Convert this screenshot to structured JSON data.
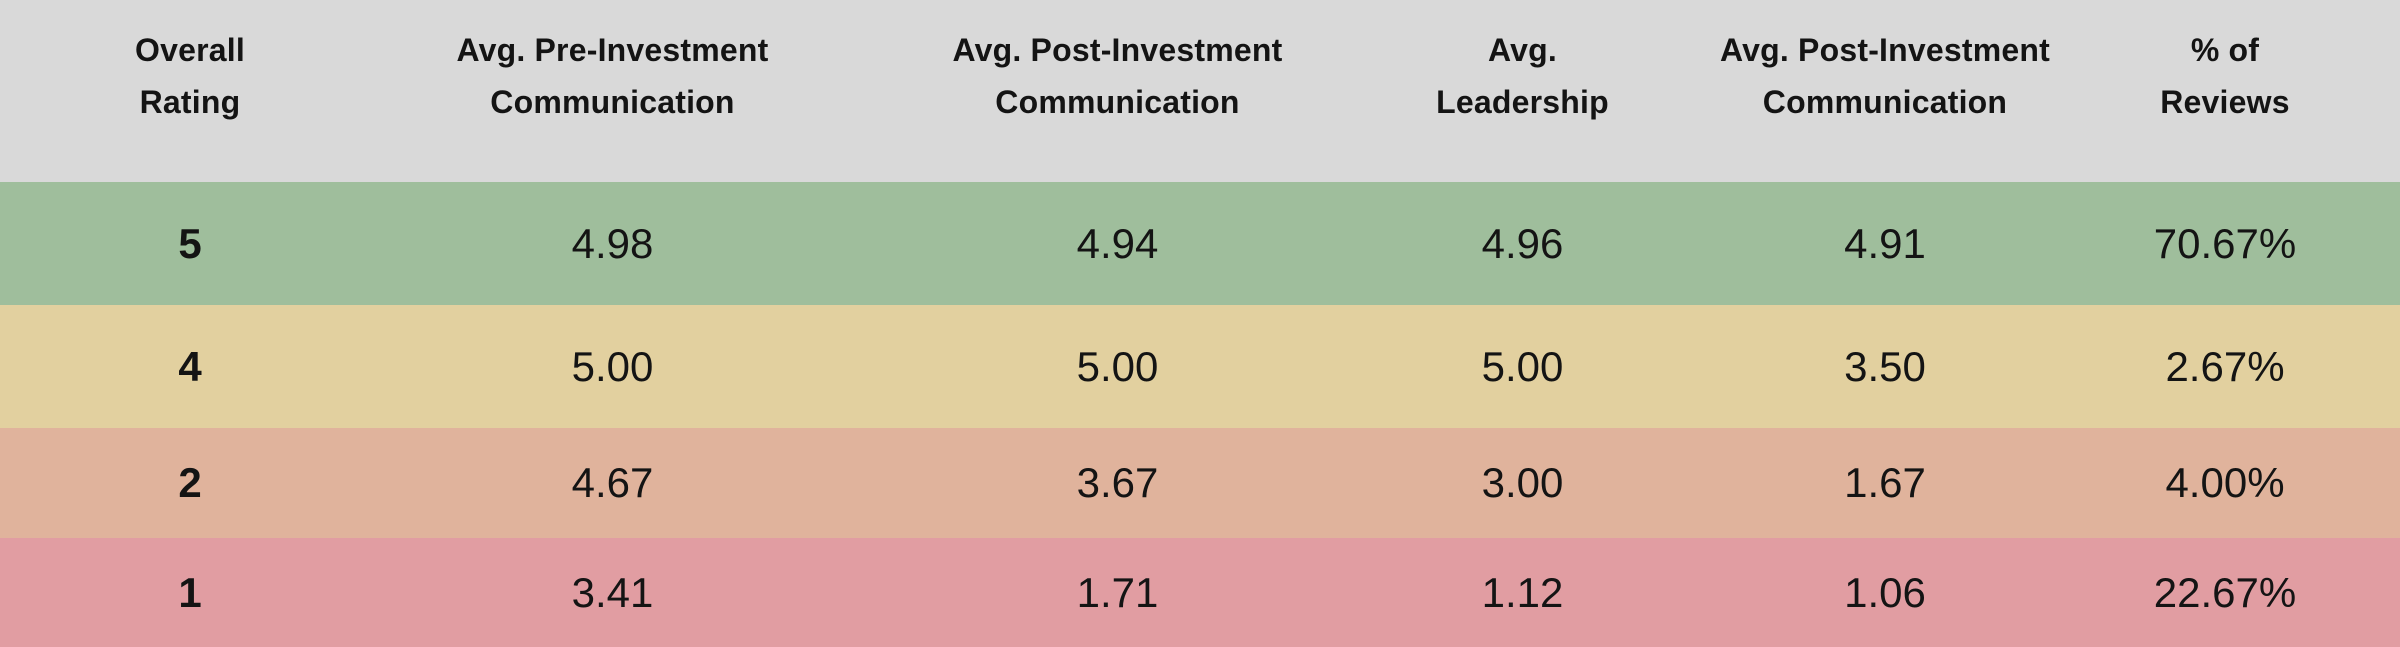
{
  "header": {
    "style": "background-color:#D9D9D9",
    "columns": [
      "Overall\nRating",
      "Avg. Pre-Investment\nCommunication",
      "Avg. Post-Investment\nCommunication",
      "Avg.\nLeadership",
      "Avg. Post-Investment\nCommunication",
      "% of\nReviews"
    ]
  },
  "rows": [
    {
      "style": "background-color:#9FBE9C",
      "cells": [
        "5",
        "4.98",
        "4.94",
        "4.96",
        "4.91",
        "70.67%"
      ]
    },
    {
      "style": "background-color:#E2D09F",
      "cells": [
        "4",
        "5.00",
        "5.00",
        "5.00",
        "3.50",
        "2.67%"
      ]
    },
    {
      "style": "background-color:#E0B39C",
      "cells": [
        "2",
        "4.67",
        "3.67",
        "3.00",
        "1.67",
        "4.00%"
      ]
    },
    {
      "style": "background-color:#E19DA2",
      "cells": [
        "1",
        "3.41",
        "1.71",
        "1.12",
        "1.06",
        "22.67%"
      ]
    }
  ],
  "colors": {
    "header_bg": "#D9D9D9",
    "row_rating5_bg": "#9FBE9C",
    "row_rating4_bg": "#E2D09F",
    "row_rating2_bg": "#E0B39C",
    "row_rating1_bg": "#E19DA2",
    "text": "#141414"
  },
  "chart_data": {
    "type": "table",
    "title": "",
    "columns": [
      "Overall Rating",
      "Avg. Pre-Investment Communication",
      "Avg. Post-Investment Communication",
      "Avg. Leadership",
      "Avg. Post-Investment Communication",
      "% of Reviews"
    ],
    "rows": [
      [
        "5",
        "4.98",
        "4.94",
        "4.96",
        "4.91",
        "70.67%"
      ],
      [
        "4",
        "5.00",
        "5.00",
        "5.00",
        "3.50",
        "2.67%"
      ],
      [
        "2",
        "4.67",
        "3.67",
        "3.00",
        "1.67",
        "4.00%"
      ],
      [
        "1",
        "3.41",
        "1.71",
        "1.12",
        "1.06",
        "22.67%"
      ]
    ],
    "row_colors": [
      "#9FBE9C",
      "#E2D09F",
      "#E0B39C",
      "#E19DA2"
    ],
    "layout": {
      "grid": false,
      "row_color_encodes": "overall rating (green=high, red=low)"
    }
  }
}
